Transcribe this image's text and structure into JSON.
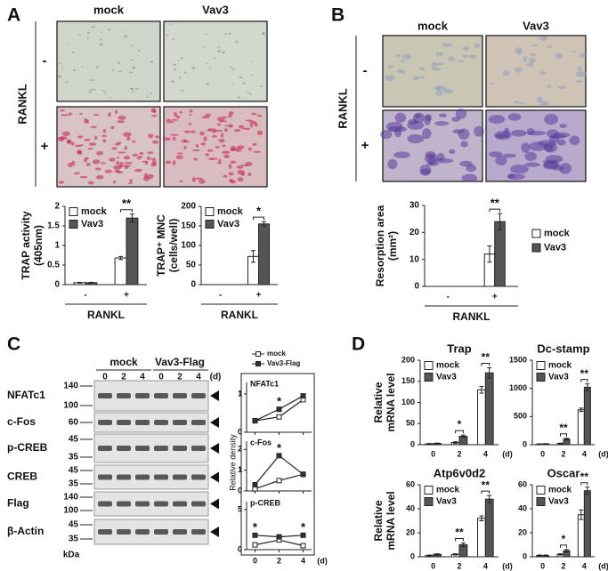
{
  "panel_labels": [
    "A",
    "B",
    "C",
    "D"
  ],
  "images": [
    {
      "columns": [
        "mock",
        "Vav3"
      ],
      "row_title": "RANKL",
      "rows": [
        "-",
        "+"
      ]
    },
    {
      "columns": [
        "mock",
        "Vav3"
      ],
      "row_title": "RANKL",
      "rows": [
        "-",
        "+"
      ]
    }
  ],
  "blot": {
    "groups": [
      "mock",
      "Vav3-Flag"
    ],
    "lanes": [
      0,
      2,
      4,
      0,
      2,
      4
    ],
    "unit": "(d)",
    "kda_label": "kDa",
    "rows": [
      {
        "name": "NFATc1",
        "kda": [
          140,
          100
        ]
      },
      {
        "name": "c-Fos",
        "kda": [
          60
        ]
      },
      {
        "name": "p-CREB",
        "kda": [
          45,
          35
        ]
      },
      {
        "name": "CREB",
        "kda": [
          45,
          35
        ]
      },
      {
        "name": "Flag",
        "kda": [
          140,
          100
        ]
      },
      {
        "name": "β-Actin",
        "kda": [
          45,
          35
        ]
      }
    ]
  },
  "chart_data": [
    {
      "type": "bar",
      "ylabel": [
        "TRAP activity",
        "(405nm)"
      ],
      "xlabel": "RANKL",
      "categories": [
        "-",
        "+"
      ],
      "ylim": [
        0,
        2
      ],
      "yticks": [
        0,
        0.5,
        1,
        1.5,
        2
      ],
      "legend": "upper left",
      "series": [
        {
          "name": "mock",
          "color": "#ffffff",
          "values": [
            0.05,
            0.68
          ],
          "errors": [
            0.01,
            0.04
          ]
        },
        {
          "name": "Vav3",
          "color": "#555555",
          "values": [
            0.05,
            1.7
          ],
          "errors": [
            0.01,
            0.1
          ]
        }
      ],
      "significance": [
        null,
        "**"
      ]
    },
    {
      "type": "bar",
      "ylabel": [
        "TRAP⁺ MNC",
        "(cells/well)"
      ],
      "xlabel": "RANKL",
      "categories": [
        "-",
        "+"
      ],
      "ylim": [
        0,
        200
      ],
      "yticks": [
        0,
        50,
        100,
        150,
        200
      ],
      "legend": "upper left",
      "series": [
        {
          "name": "mock",
          "color": "#ffffff",
          "values": [
            0,
            72
          ],
          "errors": [
            0,
            15
          ]
        },
        {
          "name": "Vav3",
          "color": "#555555",
          "values": [
            0,
            155
          ],
          "errors": [
            0,
            6
          ]
        }
      ],
      "significance": [
        null,
        "*"
      ]
    },
    {
      "type": "bar",
      "ylabel": [
        "Resorption area",
        "(mm²)"
      ],
      "xlabel": "RANKL",
      "categories": [
        "-",
        "+"
      ],
      "ylim": [
        0,
        30
      ],
      "yticks": [
        0,
        10,
        20,
        30
      ],
      "legend": "right",
      "series": [
        {
          "name": "mock",
          "color": "#ffffff",
          "values": [
            0,
            12
          ],
          "errors": [
            0,
            3
          ]
        },
        {
          "name": "Vav3",
          "color": "#555555",
          "values": [
            0,
            24
          ],
          "errors": [
            0,
            3
          ]
        }
      ],
      "significance": [
        null,
        "**"
      ]
    },
    {
      "type": "line",
      "ylabel": "Relative density",
      "xlabel": "(d)",
      "x": [
        0,
        2,
        4
      ],
      "xlim": [
        -0.7,
        4.7
      ],
      "xticks": [
        0,
        2,
        4
      ],
      "series": [
        {
          "name": "mock",
          "color": "#ffffff"
        },
        {
          "name": "Vav3-Flag",
          "color": "#333333"
        }
      ],
      "panels": [
        {
          "title": "NFATc1",
          "ylim": [
            0,
            1.3
          ],
          "yticks": [
            0,
            1
          ],
          "values": [
            [
              0.3,
              0.4,
              0.85
            ],
            [
              0.3,
              0.6,
              0.95
            ]
          ],
          "significance": [
            null,
            "*",
            null
          ]
        },
        {
          "title": "c-Fos",
          "ylim": [
            0,
            2.4
          ],
          "yticks": [
            0,
            1,
            2
          ],
          "values": [
            [
              0.1,
              0.5,
              0.8
            ],
            [
              0.3,
              1.7,
              0.8
            ]
          ],
          "significance": [
            null,
            "*",
            null
          ]
        },
        {
          "title": "p-CREB",
          "ylim": [
            0,
            6
          ],
          "yticks": [
            0,
            5
          ],
          "values": [
            [
              0.6,
              1.2,
              0.5
            ],
            [
              1.8,
              1.6,
              1.8
            ]
          ],
          "significance": [
            "*",
            null,
            "*"
          ]
        }
      ]
    },
    {
      "type": "bar",
      "title": "Trap",
      "ylabel": [
        "Relative",
        "mRNA level"
      ],
      "xlabel": "(d)",
      "categories": [
        0,
        2,
        4
      ],
      "ylim": [
        0,
        200
      ],
      "yticks": [
        0,
        50,
        100,
        150,
        200
      ],
      "legend": "upper left",
      "series": [
        {
          "name": "mock",
          "color": "#ffffff",
          "values": [
            2,
            5,
            130
          ],
          "errors": [
            1,
            2,
            8
          ]
        },
        {
          "name": "Vav3",
          "color": "#555555",
          "values": [
            3,
            20,
            170
          ],
          "errors": [
            1,
            3,
            12
          ]
        }
      ],
      "significance": [
        null,
        "*",
        "**"
      ]
    },
    {
      "type": "bar",
      "title": "Dc-stamp",
      "xlabel": "(d)",
      "categories": [
        0,
        2,
        4
      ],
      "ylim": [
        0,
        1500
      ],
      "yticks": [
        0,
        500,
        1000,
        1500
      ],
      "legend": "upper left",
      "series": [
        {
          "name": "mock",
          "color": "#ffffff",
          "values": [
            10,
            20,
            620
          ],
          "errors": [
            5,
            8,
            30
          ]
        },
        {
          "name": "Vav3",
          "color": "#555555",
          "values": [
            15,
            100,
            1020
          ],
          "errors": [
            5,
            15,
            60
          ]
        }
      ],
      "significance": [
        null,
        "**",
        "**"
      ]
    },
    {
      "type": "bar",
      "title": "Atp6v0d2",
      "ylabel": [
        "Relative",
        "mRNA level"
      ],
      "xlabel": "(d)",
      "categories": [
        0,
        2,
        4
      ],
      "ylim": [
        0,
        60
      ],
      "yticks": [
        0,
        20,
        40,
        60
      ],
      "legend": "upper left",
      "series": [
        {
          "name": "mock",
          "color": "#ffffff",
          "values": [
            1,
            2,
            32
          ],
          "errors": [
            0.5,
            0.5,
            2
          ]
        },
        {
          "name": "Vav3",
          "color": "#555555",
          "values": [
            2,
            10,
            48
          ],
          "errors": [
            0.5,
            1.5,
            3
          ]
        }
      ],
      "significance": [
        null,
        "**",
        "**"
      ]
    },
    {
      "type": "bar",
      "title": "Oscar",
      "xlabel": "(d)",
      "categories": [
        0,
        2,
        4
      ],
      "ylim": [
        0,
        60
      ],
      "yticks": [
        0,
        20,
        40,
        60
      ],
      "legend": "upper left",
      "series": [
        {
          "name": "mock",
          "color": "#ffffff",
          "values": [
            1,
            2,
            35
          ],
          "errors": [
            0.5,
            0.5,
            4
          ]
        },
        {
          "name": "Vav3",
          "color": "#555555",
          "values": [
            1,
            5,
            55
          ],
          "errors": [
            0.5,
            1,
            3
          ]
        }
      ],
      "significance": [
        null,
        "*",
        "**"
      ]
    }
  ]
}
